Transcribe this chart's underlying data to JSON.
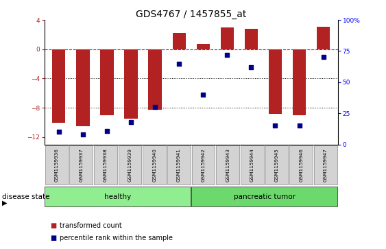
{
  "title": "GDS4767 / 1457855_at",
  "samples": [
    "GSM1159936",
    "GSM1159937",
    "GSM1159938",
    "GSM1159939",
    "GSM1159940",
    "GSM1159941",
    "GSM1159942",
    "GSM1159943",
    "GSM1159944",
    "GSM1159945",
    "GSM1159946",
    "GSM1159947"
  ],
  "bar_values": [
    -10.0,
    -10.5,
    -9.0,
    -9.5,
    -8.3,
    2.2,
    0.7,
    3.0,
    2.8,
    -8.8,
    -9.0,
    3.1
  ],
  "dot_values_pct": [
    10,
    8,
    11,
    18,
    30,
    65,
    40,
    72,
    62,
    15,
    15,
    70
  ],
  "bar_color": "#b22222",
  "dot_color": "#00008b",
  "ylim_left": [
    -13,
    4
  ],
  "ylim_right": [
    0,
    100
  ],
  "yticks_left": [
    4,
    0,
    -4,
    -8,
    -12
  ],
  "yticks_right": [
    100,
    75,
    50,
    25,
    0
  ],
  "dotted_lines": [
    -4,
    -8
  ],
  "healthy_count": 6,
  "tumor_count": 6,
  "group_labels": [
    "healthy",
    "pancreatic tumor"
  ],
  "disease_label": "disease state",
  "legend_bar_label": "transformed count",
  "legend_dot_label": "percentile rank within the sample",
  "bar_width": 0.55,
  "fig_width": 5.63,
  "fig_height": 3.63,
  "dpi": 100,
  "background_color": "#ffffff",
  "plot_bg": "#ffffff",
  "healthy_color": "#90ee90",
  "tumor_color": "#6cd96c",
  "tick_area_color": "#d3d3d3",
  "title_fontsize": 10,
  "tick_fontsize": 6.5,
  "label_fontsize": 7.5,
  "legend_fontsize": 7
}
